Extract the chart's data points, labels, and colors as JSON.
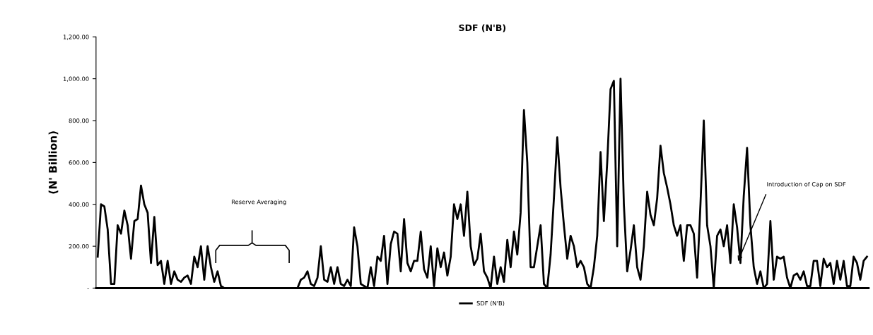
{
  "chart_data": {
    "type": "line",
    "title": "SDF (N'B)",
    "ylabel": "(N' Billion)",
    "ylim": [
      0,
      1200
    ],
    "yticks": [
      {
        "value": 0,
        "label": "-"
      },
      {
        "value": 200,
        "label": "200.00"
      },
      {
        "value": 400,
        "label": "400.00"
      },
      {
        "value": 600,
        "label": "600.00"
      },
      {
        "value": 800,
        "label": "800.00"
      },
      {
        "value": 1000,
        "label": "1,000.00"
      },
      {
        "value": 1200,
        "label": "1,200.00"
      }
    ],
    "grid": false,
    "legend": "bottom",
    "tick_labels": "y",
    "annotations": [
      "Reserve Averaging",
      "Introduction of Cap on SDF"
    ],
    "categories": [
      null,
      null,
      null,
      null,
      null,
      null,
      null,
      null,
      null,
      null,
      null,
      null,
      null,
      null,
      null,
      null,
      null,
      null,
      null,
      null,
      null,
      null,
      null,
      null,
      null,
      null,
      null,
      null,
      null,
      null,
      null,
      null,
      null,
      null,
      null,
      null,
      null,
      null,
      null,
      null,
      null,
      null,
      null,
      null,
      null,
      null,
      null,
      null,
      null,
      null,
      null,
      null,
      null,
      null,
      null,
      null,
      null,
      null,
      null,
      null,
      null,
      null,
      null,
      null,
      null,
      null,
      null,
      null,
      null,
      null,
      null,
      null,
      null,
      null,
      null,
      null,
      null,
      null,
      null,
      null,
      null,
      null,
      null,
      null,
      null,
      null,
      null,
      null,
      null,
      null,
      null,
      null,
      null,
      null,
      null,
      null,
      null,
      null,
      null,
      null,
      null,
      null,
      null,
      null,
      null,
      null,
      null,
      null,
      null,
      null,
      null,
      null,
      null,
      null,
      null,
      null,
      null,
      null,
      null,
      null,
      null,
      null,
      null,
      null,
      null,
      null,
      null,
      null,
      null,
      null,
      null,
      null,
      null,
      null,
      null,
      null,
      null,
      null,
      null,
      null,
      null,
      null,
      null,
      null,
      null,
      null,
      null,
      null,
      null,
      null,
      null,
      null,
      null,
      null,
      null,
      null,
      null,
      null,
      null,
      null,
      null,
      null,
      null,
      null,
      null,
      null,
      null,
      null,
      null,
      null,
      null,
      null,
      null,
      null,
      null,
      null,
      null,
      null,
      null,
      null,
      null,
      null,
      null,
      null,
      null,
      null,
      null,
      null,
      null,
      null,
      null,
      null,
      null,
      null,
      null,
      null,
      null,
      null,
      null,
      null,
      null,
      null,
      null,
      null,
      null,
      null,
      null,
      null,
      null,
      null,
      null,
      null,
      null,
      null,
      null,
      null,
      null,
      null,
      null,
      null,
      null,
      null,
      null,
      null,
      null,
      null,
      null,
      null,
      null,
      null,
      null,
      null
    ],
    "series": [
      {
        "name": "SDF (N'B)",
        "color": "#000000",
        "values": [
          150,
          400,
          390,
          280,
          20,
          20,
          300,
          260,
          370,
          300,
          140,
          320,
          330,
          490,
          400,
          360,
          120,
          340,
          110,
          130,
          20,
          130,
          20,
          80,
          40,
          30,
          50,
          60,
          20,
          150,
          100,
          200,
          40,
          200,
          100,
          30,
          80,
          10,
          0,
          0,
          0,
          0,
          0,
          0,
          0,
          0,
          0,
          0,
          0,
          0,
          0,
          0,
          0,
          0,
          0,
          0,
          0,
          0,
          0,
          0,
          0,
          40,
          50,
          80,
          20,
          10,
          50,
          200,
          40,
          30,
          100,
          20,
          100,
          20,
          10,
          40,
          10,
          290,
          200,
          20,
          10,
          0,
          100,
          10,
          150,
          130,
          250,
          20,
          210,
          270,
          260,
          80,
          330,
          120,
          80,
          130,
          130,
          270,
          90,
          50,
          200,
          10,
          190,
          100,
          170,
          60,
          150,
          400,
          330,
          400,
          250,
          460,
          200,
          110,
          140,
          260,
          80,
          50,
          0,
          150,
          20,
          100,
          30,
          230,
          100,
          270,
          160,
          360,
          850,
          600,
          100,
          100,
          200,
          300,
          20,
          0,
          160,
          430,
          720,
          480,
          300,
          140,
          250,
          200,
          100,
          130,
          100,
          20,
          0,
          100,
          250,
          650,
          320,
          600,
          950,
          990,
          200,
          1000,
          400,
          80,
          180,
          300,
          100,
          40,
          200,
          460,
          350,
          300,
          430,
          680,
          550,
          480,
          400,
          300,
          250,
          300,
          130,
          300,
          300,
          260,
          50,
          400,
          800,
          300,
          200,
          0,
          250,
          280,
          200,
          300,
          120,
          400,
          290,
          120,
          440,
          670,
          300,
          100,
          20,
          80,
          0,
          20,
          320,
          40,
          150,
          140,
          150,
          50,
          0,
          60,
          70,
          40,
          80,
          10,
          10,
          130,
          130,
          10,
          140,
          100,
          120,
          20,
          130,
          40,
          130,
          10,
          10,
          150,
          120,
          40,
          130,
          150
        ]
      }
    ]
  }
}
